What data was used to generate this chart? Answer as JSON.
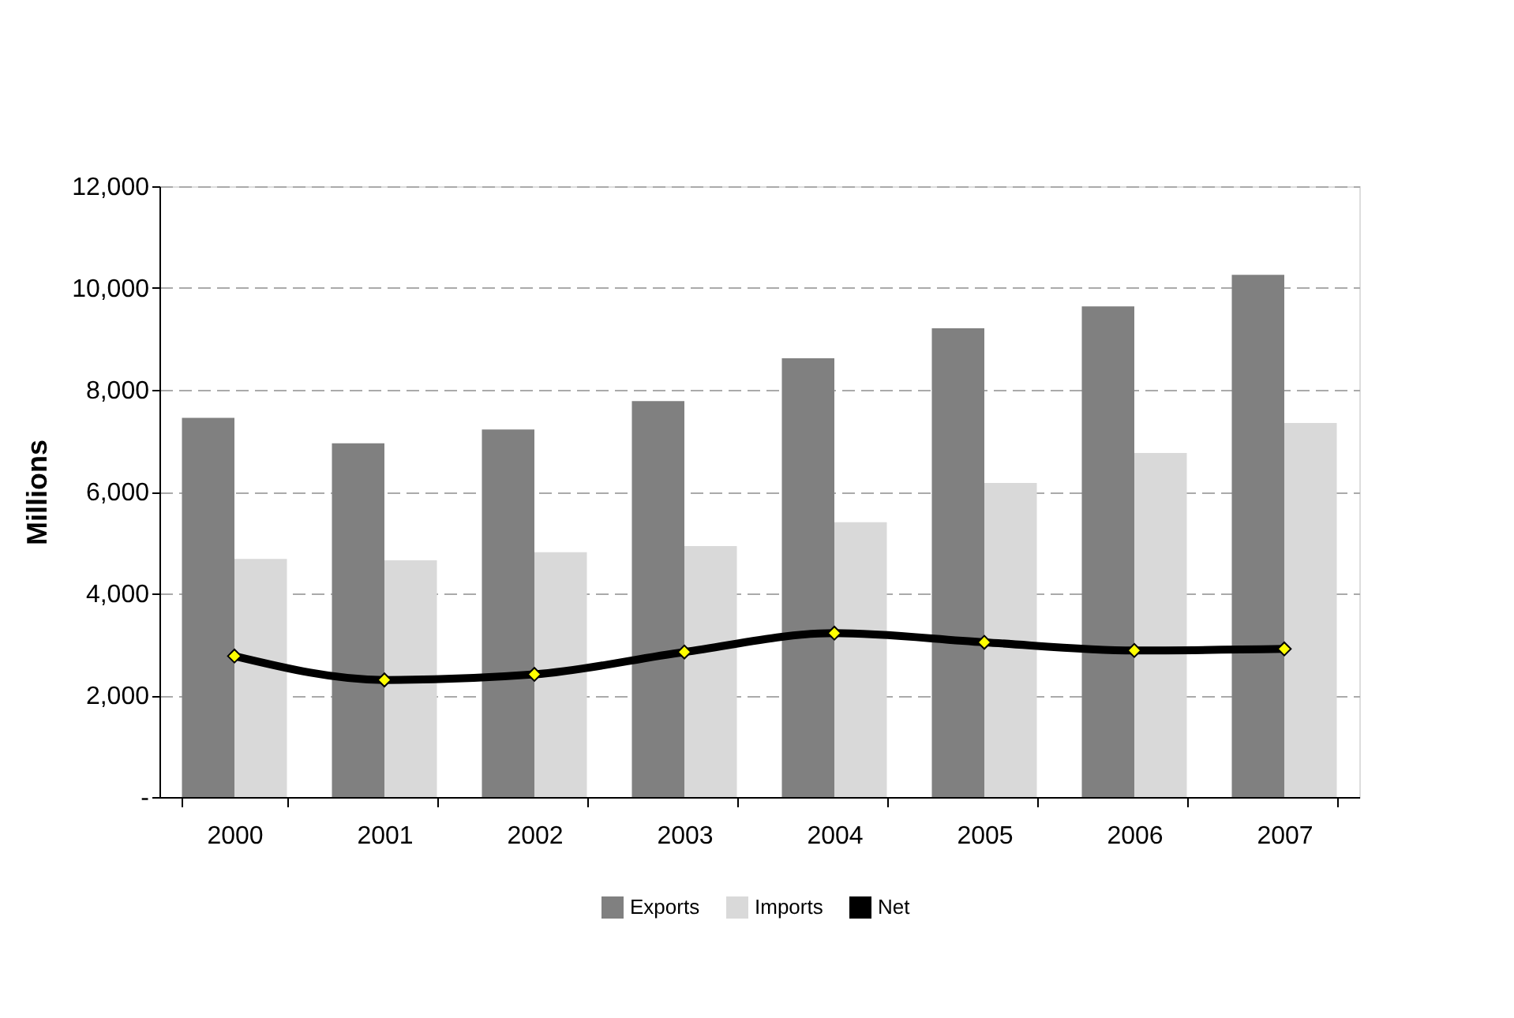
{
  "chart_data": {
    "type": "bar",
    "ylabel": "Millions",
    "categories": [
      "2000",
      "2001",
      "2002",
      "2003",
      "2004",
      "2005",
      "2006",
      "2007"
    ],
    "series": [
      {
        "name": "Exports",
        "color": "#808080",
        "values": [
          7450,
          6950,
          7220,
          7780,
          8620,
          9210,
          9640,
          10260
        ]
      },
      {
        "name": "Imports",
        "color": "#d9d9d9",
        "values": [
          4680,
          4650,
          4810,
          4930,
          5400,
          6170,
          6760,
          7350
        ]
      },
      {
        "name": "Net",
        "type": "line",
        "color": "#000000",
        "marker": "diamond",
        "values": [
          2770,
          2300,
          2410,
          2850,
          3220,
          3040,
          2880,
          2910
        ]
      }
    ],
    "ylim": [
      0,
      12000
    ],
    "yticks": [
      {
        "value": 0,
        "label": "-"
      },
      {
        "value": 2000,
        "label": "2,000"
      },
      {
        "value": 4000,
        "label": "4,000"
      },
      {
        "value": 6000,
        "label": "6,000"
      },
      {
        "value": 8000,
        "label": "8,000"
      },
      {
        "value": 10000,
        "label": "10,000"
      },
      {
        "value": 12000,
        "label": "12,000"
      }
    ],
    "grid": "y",
    "legend": "bottom"
  }
}
